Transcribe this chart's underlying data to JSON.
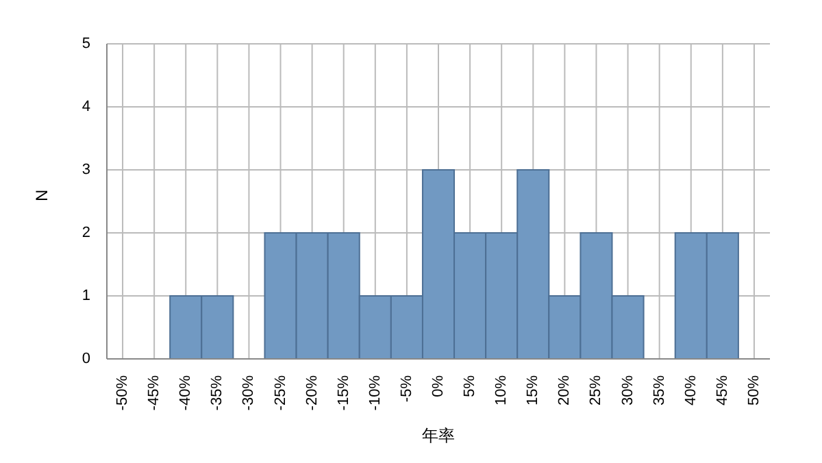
{
  "chart_data": {
    "type": "histogram",
    "xlabel": "年率",
    "ylabel": "N",
    "bins": [
      -52.5,
      -47.5,
      -42.5,
      -37.5,
      -32.5,
      -27.5,
      -22.5,
      -17.5,
      -12.5,
      -7.5,
      -2.5,
      2.5,
      7.5,
      12.5,
      17.5,
      22.5,
      27.5,
      32.5,
      37.5,
      42.5,
      47.5,
      52.5
    ],
    "values": [
      0,
      0,
      1,
      1,
      0,
      2,
      2,
      2,
      1,
      1,
      3,
      2,
      2,
      3,
      1,
      2,
      1,
      0,
      2,
      2,
      0
    ],
    "color": "#7199c2",
    "xlim": [
      -52.5,
      52.5
    ],
    "xticks": [
      {
        "value": -50,
        "label": "-50%"
      },
      {
        "value": -45,
        "label": "-45%"
      },
      {
        "value": -40,
        "label": "-40%"
      },
      {
        "value": -35,
        "label": "-35%"
      },
      {
        "value": -30,
        "label": "-30%"
      },
      {
        "value": -25,
        "label": "-25%"
      },
      {
        "value": -20,
        "label": "-20%"
      },
      {
        "value": -15,
        "label": "-15%"
      },
      {
        "value": -10,
        "label": "-10%"
      },
      {
        "value": -5,
        "label": "-5%"
      },
      {
        "value": 0,
        "label": "0%"
      },
      {
        "value": 5,
        "label": "5%"
      },
      {
        "value": 10,
        "label": "10%"
      },
      {
        "value": 15,
        "label": "15%"
      },
      {
        "value": 20,
        "label": "20%"
      },
      {
        "value": 25,
        "label": "25%"
      },
      {
        "value": 30,
        "label": "30%"
      },
      {
        "value": 35,
        "label": "35%"
      },
      {
        "value": 40,
        "label": "40%"
      },
      {
        "value": 45,
        "label": "45%"
      },
      {
        "value": 50,
        "label": "50%"
      }
    ],
    "ylim": [
      0,
      5
    ],
    "yticks": [
      0,
      1,
      2,
      3,
      4,
      5
    ],
    "grid": true
  }
}
